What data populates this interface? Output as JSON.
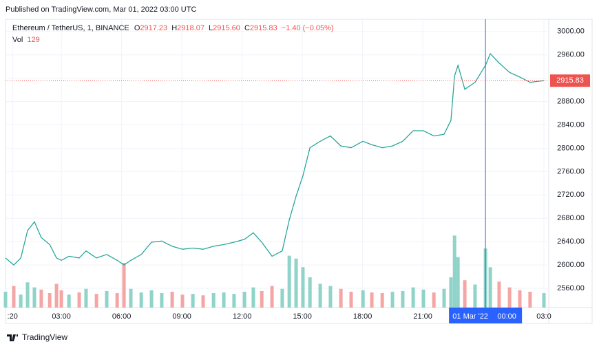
{
  "header": "Published on TradingView.com, Mar 01, 2022 03:00 UTC",
  "footer": "TradingView",
  "legend": {
    "symbol": "Ethereum / TetherUS, 1, BINANCE",
    "open_label": "O",
    "open": 2917.23,
    "high_label": "H",
    "high": 2918.07,
    "low_label": "L",
    "low": {
      "value": 2915.6,
      "label": "2915.60"
    },
    "close_label": "C",
    "close": 2915.83,
    "change": "−1.40 (−0.05%)",
    "vol_label": "Vol",
    "vol": 129
  },
  "chart_data": {
    "type": "line",
    "x": [
      0.22,
      0.63,
      0.98,
      1.32,
      1.66,
      2.0,
      2.42,
      2.76,
      3.0,
      3.38,
      3.89,
      4.23,
      4.75,
      5.26,
      5.78,
      6.12,
      6.46,
      6.98,
      7.49,
      8.0,
      8.52,
      9.03,
      9.55,
      10.06,
      10.58,
      11.09,
      11.6,
      12.12,
      12.56,
      12.98,
      13.49,
      14.0,
      14.35,
      14.69,
      15.03,
      15.38,
      15.89,
      16.4,
      16.92,
      17.43,
      18.02,
      18.46,
      18.98,
      19.49,
      20.0,
      20.52,
      21.03,
      21.55,
      22.06,
      22.4,
      22.58,
      22.75,
      23.09,
      23.6,
      24.12,
      24.36,
      24.8,
      25.32,
      25.83,
      26.34,
      27.03
    ],
    "series": [
      {
        "name": "Ethereum / TetherUS",
        "color": "#26a69a",
        "values": [
          2612,
          2600,
          2612,
          2659,
          2674,
          2647,
          2635,
          2612,
          2608,
          2615,
          2612,
          2624,
          2612,
          2618,
          2608,
          2600,
          2608,
          2618,
          2639,
          2641,
          2632,
          2627,
          2629,
          2627,
          2632,
          2635,
          2639,
          2644,
          2655,
          2639,
          2615,
          2624,
          2677,
          2718,
          2753,
          2801,
          2812,
          2821,
          2804,
          2801,
          2812,
          2806,
          2801,
          2804,
          2812,
          2830,
          2830,
          2821,
          2824,
          2848,
          2924,
          2942,
          2901,
          2913,
          2942,
          2962,
          2946,
          2930,
          2922,
          2913,
          2915.83
        ]
      },
      {
        "name": "Vol",
        "axis": "y2",
        "up_color": "#8fd3c9",
        "down_color": "#f4a6a4",
        "values": [
          220,
          300,
          180,
          350,
          280,
          250,
          200,
          330,
          240,
          180,
          210,
          260,
          190,
          230,
          200,
          620,
          260,
          210,
          240,
          200,
          220,
          180,
          190,
          170,
          200,
          210,
          190,
          220,
          280,
          230,
          300,
          260,
          720,
          680,
          560,
          420,
          330,
          300,
          260,
          220,
          240,
          210,
          200,
          220,
          230,
          280,
          250,
          210,
          260,
          420,
          1000,
          700,
          380,
          320,
          820,
          560,
          360,
          280,
          240,
          220,
          200
        ]
      }
    ],
    "xlim": [
      0.22,
      27.27
    ],
    "xticks": [
      {
        "value": 0.57,
        "label": ":20"
      },
      {
        "value": 3,
        "label": "03:00"
      },
      {
        "value": 6,
        "label": "06:00"
      },
      {
        "value": 9,
        "label": "09:00"
      },
      {
        "value": 12,
        "label": "12:00"
      },
      {
        "value": 15,
        "label": "15:00"
      },
      {
        "value": 18,
        "label": "18:00"
      },
      {
        "value": 21,
        "label": "21:00"
      },
      {
        "value": 27.03,
        "label": "03:0"
      }
    ],
    "ylim": [
      2527,
      3021
    ],
    "yticks": [
      {
        "value": 2560,
        "label": "2560.00"
      },
      {
        "value": 2600,
        "label": "2600.00"
      },
      {
        "value": 2640,
        "label": "2640.00"
      },
      {
        "value": 2680,
        "label": "2680.00"
      },
      {
        "value": 2720,
        "label": "2720.00"
      },
      {
        "value": 2760,
        "label": "2760.00"
      },
      {
        "value": 2800,
        "label": "2800.00"
      },
      {
        "value": 2840,
        "label": "2840.00"
      },
      {
        "value": 2880,
        "label": "2880.00"
      },
      {
        "value": 2920,
        "label": "2920.00"
      },
      {
        "value": 2960,
        "label": "2960.00"
      },
      {
        "value": 3000,
        "label": "3000.00"
      }
    ],
    "y2lim": [
      0,
      4000
    ],
    "grid": true,
    "last_price": 2915.83,
    "last_price_color": "#ef5350",
    "crosshair": {
      "x": 24.12,
      "date_label": "01 Mar '22",
      "time_label": "00:00",
      "color": "#2962ff"
    }
  }
}
